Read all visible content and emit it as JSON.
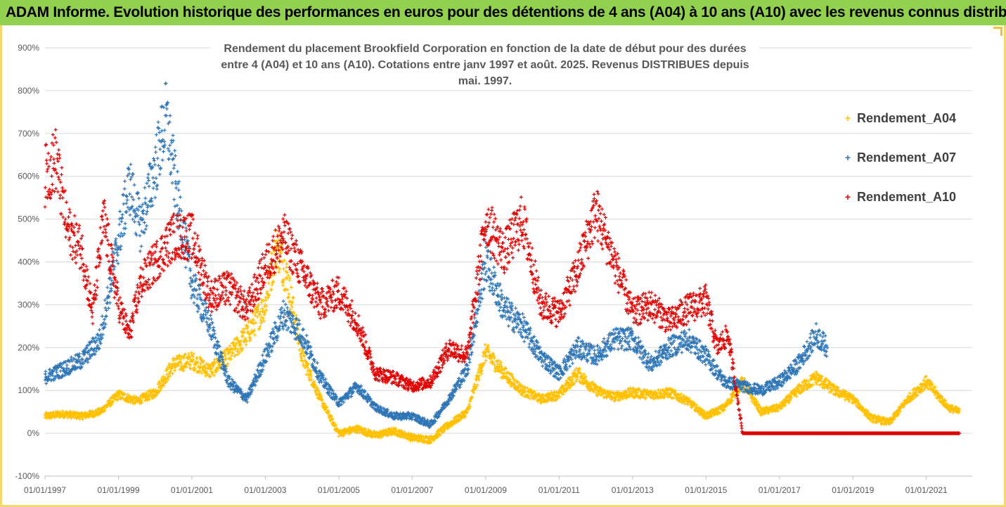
{
  "header": {
    "title": "ADAM Informe. Evolution historique des performances en euros pour des détentions de 4 ans (A04) à 10 ans (A10) avec les revenus connus distribués"
  },
  "colors": {
    "header_bg": "#92d050",
    "frame": "#f5d76e",
    "a04": "#ffc000",
    "a07": "#2e75b6",
    "a10": "#e00000"
  },
  "chart_data": {
    "type": "scatter",
    "title": "Rendement du placement Brookfield Corporation en fonction de la date de début pour des durées",
    "subtitle": "entre 4 (A04) et 10 ans (A10). Cotations entre janv 1997 et août. 2025. Revenus DISTRIBUES depuis mai. 1997.",
    "xlabel": "",
    "ylabel": "",
    "x_ticks": [
      "01/01/1997",
      "01/01/1999",
      "01/01/2001",
      "01/01/2003",
      "01/01/2005",
      "01/01/2007",
      "01/01/2009",
      "01/01/2011",
      "01/01/2013",
      "01/01/2015",
      "01/01/2017",
      "01/01/2019",
      "01/01/2021"
    ],
    "y_ticks": [
      "-100%",
      "0%",
      "100%",
      "200%",
      "300%",
      "400%",
      "500%",
      "600%",
      "700%",
      "800%",
      "900%"
    ],
    "ylim": [
      -100,
      900
    ],
    "grid": "horizontal",
    "legend_position": "right",
    "series": [
      {
        "name": "Rendement_A04",
        "color": "#ffc000",
        "x": [
          1997.0,
          1997.5,
          1998.0,
          1998.5,
          1999.0,
          1999.5,
          2000.0,
          2000.5,
          2001.0,
          2001.5,
          2002.0,
          2002.5,
          2003.0,
          2003.3,
          2003.6,
          2004.0,
          2004.5,
          2005.0,
          2005.5,
          2006.0,
          2006.5,
          2007.0,
          2007.5,
          2008.0,
          2008.5,
          2009.0,
          2009.5,
          2010.0,
          2010.5,
          2011.0,
          2011.5,
          2012.0,
          2012.5,
          2013.0,
          2013.5,
          2014.0,
          2014.5,
          2015.0,
          2015.5,
          2016.0,
          2016.5,
          2017.0,
          2017.5,
          2018.0,
          2018.5,
          2019.0,
          2019.5,
          2020.0,
          2020.5,
          2021.0,
          2021.3,
          2021.6,
          2021.9
        ],
        "values": [
          40,
          45,
          40,
          50,
          90,
          75,
          95,
          160,
          170,
          145,
          180,
          230,
          300,
          440,
          360,
          180,
          80,
          0,
          10,
          -5,
          5,
          -10,
          -15,
          20,
          50,
          190,
          140,
          100,
          80,
          90,
          140,
          100,
          85,
          95,
          90,
          95,
          75,
          40,
          60,
          120,
          50,
          60,
          100,
          130,
          100,
          80,
          35,
          25,
          80,
          120,
          90,
          60,
          50
        ]
      },
      {
        "name": "Rendement_A07",
        "color": "#2e75b6",
        "x": [
          1997.0,
          1997.5,
          1998.0,
          1998.5,
          1999.0,
          1999.3,
          1999.6,
          2000.0,
          2000.3,
          2000.6,
          2001.0,
          2001.5,
          2002.0,
          2002.5,
          2003.0,
          2003.5,
          2004.0,
          2004.5,
          2005.0,
          2005.5,
          2006.0,
          2006.5,
          2007.0,
          2007.5,
          2008.0,
          2008.5,
          2009.0,
          2009.5,
          2010.0,
          2010.5,
          2011.0,
          2011.5,
          2012.0,
          2012.5,
          2013.0,
          2013.5,
          2014.0,
          2014.5,
          2015.0,
          2015.5,
          2016.0,
          2016.5,
          2017.0,
          2017.5,
          2018.0,
          2018.3
        ],
        "values": [
          130,
          150,
          170,
          220,
          450,
          580,
          480,
          620,
          740,
          550,
          350,
          250,
          120,
          80,
          180,
          280,
          230,
          130,
          70,
          110,
          60,
          40,
          40,
          20,
          80,
          150,
          400,
          290,
          250,
          180,
          140,
          200,
          180,
          220,
          220,
          160,
          200,
          220,
          180,
          120,
          110,
          100,
          120,
          160,
          230,
          200
        ]
      },
      {
        "name": "Rendement_A10",
        "color": "#e00000",
        "x": [
          1997.0,
          1997.3,
          1997.6,
          1998.0,
          1998.3,
          1998.6,
          1999.0,
          1999.3,
          1999.6,
          2000.0,
          2000.5,
          2001.0,
          2001.5,
          2002.0,
          2002.5,
          2003.0,
          2003.5,
          2004.0,
          2004.5,
          2005.0,
          2005.5,
          2006.0,
          2006.5,
          2007.0,
          2007.5,
          2008.0,
          2008.5,
          2009.0,
          2009.5,
          2010.0,
          2010.5,
          2011.0,
          2011.5,
          2012.0,
          2012.5,
          2013.0,
          2013.5,
          2014.0,
          2014.5,
          2015.0,
          2015.3,
          2015.6,
          2016.0,
          2017.0,
          2018.0,
          2019.0,
          2020.0,
          2021.0,
          2021.9
        ],
        "values": [
          600,
          640,
          480,
          430,
          280,
          500,
          300,
          230,
          350,
          400,
          460,
          460,
          320,
          340,
          290,
          390,
          460,
          380,
          300,
          330,
          260,
          140,
          130,
          110,
          120,
          200,
          180,
          500,
          420,
          500,
          300,
          280,
          380,
          520,
          400,
          280,
          300,
          260,
          290,
          310,
          200,
          230,
          0,
          0,
          0,
          0,
          0,
          0,
          0
        ]
      }
    ]
  }
}
